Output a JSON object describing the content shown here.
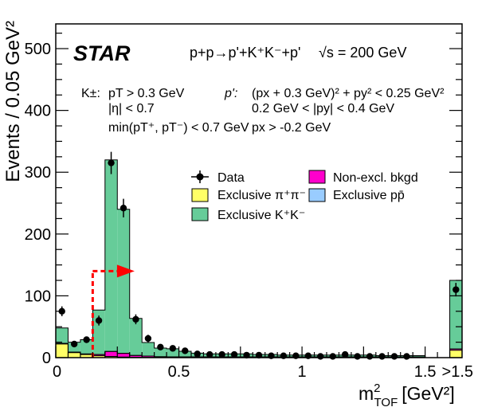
{
  "chart_data": {
    "type": "bar",
    "ylabel": "Events / 0.05 GeV²",
    "xlabel_base": "m",
    "xlabel_sup": "2",
    "xlabel_sub": "TOF",
    "xlabel_unit": "[GeV²]",
    "xlim": [
      0,
      1.65
    ],
    "ylim": [
      0,
      540
    ],
    "x_ticks": [
      {
        "value": 0,
        "label": "0"
      },
      {
        "value": 0.5,
        "label": "0.5"
      },
      {
        "value": 1,
        "label": "1"
      },
      {
        "value": 1.5,
        "label": "1.5"
      },
      {
        "value": 1.65,
        "label": ">1.5"
      }
    ],
    "y_ticks": [
      {
        "value": 0,
        "label": "0"
      },
      {
        "value": 100,
        "label": "100"
      },
      {
        "value": 200,
        "label": "200"
      },
      {
        "value": 300,
        "label": "300"
      },
      {
        "value": 400,
        "label": "400"
      },
      {
        "value": 500,
        "label": "500"
      }
    ],
    "bin_width": 0.05,
    "bins": [
      0.0,
      0.05,
      0.1,
      0.15,
      0.2,
      0.25,
      0.3,
      0.35,
      0.4,
      0.45,
      0.5,
      0.55,
      0.6,
      0.65,
      0.7,
      0.75,
      0.8,
      0.85,
      0.9,
      0.95,
      1.0,
      1.05,
      1.1,
      1.15,
      1.2,
      1.25,
      1.3,
      1.35,
      1.4,
      1.45
    ],
    "overflow_bin": [
      1.6,
      1.65
    ],
    "series": [
      {
        "name": "Exclusive π⁺π⁻",
        "color": "#ffff66",
        "values": [
          22,
          8,
          5,
          3,
          2,
          1,
          0.5,
          0.5,
          0.5,
          0.3,
          0.3,
          0.3,
          0.2,
          0.2,
          0.2,
          0.2,
          0.2,
          0.2,
          0.2,
          0.2,
          0.2,
          0.2,
          0.2,
          0.2,
          0.2,
          0.2,
          0.2,
          0.2,
          0.2,
          0.2
        ],
        "overflow": 12
      },
      {
        "name": "Non-excl. bkgd",
        "color": "#ff00cc",
        "values": [
          1,
          1,
          1,
          2,
          8,
          6,
          3,
          2,
          1,
          1,
          1,
          1,
          1,
          1,
          1,
          1,
          1,
          1,
          1,
          1,
          1,
          1,
          1,
          1,
          1,
          1,
          1,
          1,
          1,
          1
        ],
        "overflow": 2
      },
      {
        "name": "Exclusive pp̄",
        "color": "#99ccff",
        "values": [
          0,
          0,
          0,
          0,
          0,
          0,
          0,
          0,
          0,
          0,
          0,
          0,
          0,
          0,
          0,
          0,
          0,
          0,
          0,
          0,
          0,
          0,
          0,
          0,
          0,
          0,
          0,
          0,
          0,
          0
        ],
        "overflow": 0
      },
      {
        "name": "Exclusive K⁺K⁻",
        "color": "#66cc99",
        "values": [
          25,
          16,
          23,
          72,
          310,
          233,
          60,
          22,
          14,
          13,
          9,
          6,
          5,
          5,
          5,
          5,
          4,
          4,
          3,
          3,
          3,
          3,
          3,
          3,
          3,
          3,
          2,
          2,
          2,
          2
        ],
        "overflow": 111
      }
    ],
    "data_points": [
      {
        "x": 0.025,
        "y": 75,
        "err": 8
      },
      {
        "x": 0.075,
        "y": 22,
        "err": 5
      },
      {
        "x": 0.125,
        "y": 29,
        "err": 5
      },
      {
        "x": 0.175,
        "y": 60,
        "err": 8
      },
      {
        "x": 0.225,
        "y": 315,
        "err": 18
      },
      {
        "x": 0.275,
        "y": 242,
        "err": 15
      },
      {
        "x": 0.325,
        "y": 62,
        "err": 8
      },
      {
        "x": 0.375,
        "y": 31,
        "err": 6
      },
      {
        "x": 0.425,
        "y": 17,
        "err": 4
      },
      {
        "x": 0.475,
        "y": 15,
        "err": 4
      },
      {
        "x": 0.525,
        "y": 11,
        "err": 3
      },
      {
        "x": 0.575,
        "y": 6,
        "err": 2.5
      },
      {
        "x": 0.625,
        "y": 5,
        "err": 2
      },
      {
        "x": 0.675,
        "y": 5,
        "err": 2
      },
      {
        "x": 0.725,
        "y": 5,
        "err": 2
      },
      {
        "x": 0.775,
        "y": 4,
        "err": 2
      },
      {
        "x": 0.825,
        "y": 4,
        "err": 2
      },
      {
        "x": 0.875,
        "y": 3,
        "err": 2
      },
      {
        "x": 0.925,
        "y": 3,
        "err": 2
      },
      {
        "x": 0.975,
        "y": 3,
        "err": 2
      },
      {
        "x": 1.025,
        "y": 3,
        "err": 2
      },
      {
        "x": 1.075,
        "y": 2,
        "err": 1.5
      },
      {
        "x": 1.125,
        "y": 2,
        "err": 1.5
      },
      {
        "x": 1.175,
        "y": 5,
        "err": 2
      },
      {
        "x": 1.225,
        "y": 2,
        "err": 1.5
      },
      {
        "x": 1.275,
        "y": 2,
        "err": 1.5
      },
      {
        "x": 1.325,
        "y": 2,
        "err": 1.5
      },
      {
        "x": 1.375,
        "y": 2,
        "err": 1.5
      },
      {
        "x": 1.425,
        "y": 2,
        "err": 1.5
      },
      {
        "x": 1.625,
        "y": 110,
        "err": 11
      }
    ],
    "data_name": "Data",
    "data_color": "#000000",
    "cut": {
      "x": 0.15,
      "y": 140,
      "arrow_to_x": 0.32,
      "color": "#ff0000"
    },
    "annotations": {
      "star_logo": "STAR",
      "reaction": "p+p→p'+K⁺K⁻+p'",
      "sqrt_s": "√s = 200 GeV",
      "kaon_header": "K±:",
      "kaon_cuts": [
        "pT > 0.3 GeV",
        "|η| < 0.7",
        "min(pT⁺, pT⁻) < 0.7 GeV"
      ],
      "proton_header": "p':",
      "proton_cuts": [
        "(px + 0.3 GeV)² + py² < 0.25 GeV²",
        "0.2 GeV < |py| < 0.4 GeV",
        "px > -0.2 GeV"
      ]
    },
    "legend_position": "upper-right-center",
    "grid": false
  }
}
